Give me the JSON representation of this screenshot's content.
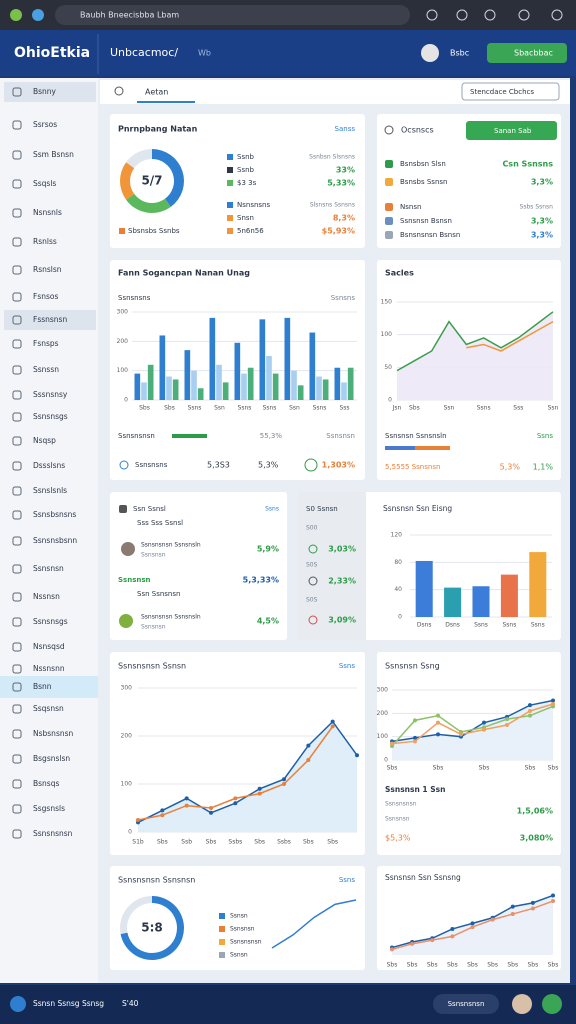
{
  "browser": {
    "url": "Baubh Bneecisbba Lbam"
  },
  "header": {
    "logo": "OhioEtkia",
    "title": "Unbcacmoc/",
    "subtitle": "Wb",
    "user": "Bsbc",
    "button": "Sbacbbac"
  },
  "sidebar": [
    "Bsnny",
    "Ssrsos",
    "Ssm Bsnsn",
    "Ssqsls",
    "Nsnsnls",
    "Rsnlss",
    "Rsnslsn",
    "Fsnsos",
    "Fssnsnsn",
    "Fsnsps",
    "Ssnssn",
    "Sssnsnsy",
    "Ssnsnsgs",
    "Nsqsp",
    "Dssslsns",
    "Ssnslsnls",
    "Ssnsbsnsns",
    "Ssnsnsbsnn",
    "Ssnsnsn",
    "Nssnsn",
    "Ssnsnsgs",
    "Nsnsqsd",
    "Nssnsnn",
    "Bsnn",
    "Ssqsnsn",
    "Nsbsnsnsn",
    "Bsgsnslsn",
    "Bsnsqs",
    "Ssgsnsls",
    "Ssnsnsnsn"
  ],
  "toolbar": {
    "tab": "Aetan",
    "select": "Stencdace Cbchcs"
  },
  "summary": {
    "title": "Pnrnpbang Natan",
    "link": "Sanss",
    "rows": [
      [
        "Ssnb",
        "Ssnbsn Slsnsns"
      ],
      [
        "Ssnb",
        "33%"
      ],
      [
        "$3 3s",
        "5,33%"
      ],
      [
        "Nsnsnsns",
        "Slsnsns Ssnsns"
      ],
      [
        "Snsn",
        "8,3%"
      ],
      [
        "5n6n56",
        "$5,93%"
      ]
    ],
    "footer": "Sbsnsbs Ssnbs"
  },
  "orders": {
    "title": "Ocsnscs",
    "button": "Sanan Sab",
    "rows": [
      [
        "Bsnsbsn Slsn",
        "Csn Ssnsns"
      ],
      [
        "Bsnsbs Ssnsn",
        "3,3%"
      ],
      [
        "Nsnsn",
        "Ssbs Ssnsn"
      ],
      [
        "Ssnsnsn Bsnsn",
        "3,3%"
      ],
      [
        "Bsnsnsnsn Bsnsn",
        "3,3%"
      ]
    ]
  },
  "usage": {
    "title": "Fann Sogancpan Nanan Unag",
    "left": "Ssnsnsns",
    "right": "Ssnsns",
    "progress": [
      "Ssnsnsnsn",
      "55,3%",
      "Ssnsnsn"
    ],
    "stats": [
      "Ssnsnsns",
      "5,3S3",
      "5,3%",
      "1,303%"
    ]
  },
  "sales": {
    "title": "Sacles",
    "note": [
      "Ssnsnsn Ssnsnsln",
      "Ssns"
    ],
    "stats": [
      "5,5555 Ssnsnsn",
      "5,3%",
      "1,1%"
    ]
  },
  "team": {
    "title": "Ssn Ssnsl",
    "link": "Ssns",
    "sub": "Sss Sss Ssnsl",
    "person1": [
      "Ssnsnsnsn Ssnsnsln",
      "Ssnsnsn",
      "5,9%"
    ],
    "total": [
      "Ssnsnsn",
      "5,3,33%"
    ],
    "sub2": "Ssn Ssnsnsn",
    "person2": [
      "Ssnsnsnsn Ssnsnsln",
      "Ssnsnsn",
      "4,5%"
    ]
  },
  "mini": {
    "title": "S0 Ssnsn",
    "rows": [
      [
        "S00",
        "3,03%"
      ],
      [
        "S0S",
        "2,33%"
      ],
      [
        "S0S",
        "3,09%"
      ]
    ]
  },
  "bars": {
    "title": "Ssnsnsn Ssn Eisng"
  },
  "trend": {
    "title": "Ssnsnsnsn Ssnsn",
    "link": "Ssns"
  },
  "growth": {
    "title": "Ssnsnsn Ssng",
    "stats_title": "Ssnsnsn 1 Ssn",
    "rows": [
      "Ssnsnsnsn",
      "1,5,06%",
      "Ssnsnsn",
      "$5,3%",
      "3,080%"
    ]
  },
  "split": {
    "title": "Ssnsnsnsn Ssnsnsn",
    "link": "Ssns",
    "legend": [
      "Ssnsn",
      "Ssnsnsn",
      "Ssnsnsnsn",
      "Ssnsn"
    ]
  },
  "recent": {
    "title": "Ssnsnsn Ssn Ssnsng"
  },
  "footer": {
    "status": "Ssnsn Ssnsg Ssnsg",
    "time": "S'40",
    "button": "Ssnsnsnsn"
  },
  "chart_data": [
    {
      "type": "pie",
      "center_label": "5/7",
      "values": [
        40,
        25,
        20,
        15
      ],
      "colors": [
        "#2f7fd0",
        "#5cb85c",
        "#f0953a",
        "#dfe6ee"
      ]
    },
    {
      "type": "bar",
      "categories": [
        "Sbs",
        "Sbs",
        "Ssns",
        "Ssn",
        "Ssns",
        "Ssns",
        "Ssn",
        "Ssns",
        "Sss"
      ],
      "ylim": [
        0,
        300
      ],
      "yticks": [
        0,
        100,
        200,
        300
      ],
      "series": [
        {
          "color": "#2f7fd0",
          "values": [
            90,
            220,
            170,
            280,
            195,
            275,
            280,
            230,
            110
          ]
        },
        {
          "color": "#a9cff0",
          "values": [
            60,
            80,
            100,
            120,
            90,
            150,
            100,
            80,
            60
          ]
        },
        {
          "color": "#4caf7a",
          "values": [
            120,
            70,
            40,
            60,
            110,
            90,
            50,
            70,
            110
          ]
        }
      ]
    },
    {
      "type": "line",
      "categories": [
        "Jsn",
        "Sbs",
        null,
        "Ssn",
        null,
        "Ssns",
        null,
        "Sss",
        null,
        "Ssn"
      ],
      "ylim": [
        0,
        150
      ],
      "yticks": [
        0,
        50,
        100,
        150
      ],
      "series": [
        {
          "color": "#3a9d4a",
          "fill": "#ece8f6",
          "values": [
            45,
            60,
            75,
            120,
            85,
            95,
            80,
            95,
            115,
            135
          ]
        },
        {
          "color": "#f0953a",
          "values": [
            null,
            null,
            null,
            null,
            80,
            85,
            75,
            90,
            105,
            120
          ]
        }
      ]
    },
    {
      "type": "bar",
      "categories": [
        "Dsns",
        "Dsns",
        "Ssns",
        "Ssns",
        "Ssns"
      ],
      "ylim": [
        0,
        120
      ],
      "yticks": [
        0,
        40,
        80,
        120
      ],
      "values": [
        82,
        43,
        45,
        62,
        95
      ],
      "colors": [
        "#3b7dd8",
        "#2a9fb0",
        "#3b7dd8",
        "#e8734a",
        "#f2a93b"
      ]
    },
    {
      "type": "line",
      "categories": [
        "S1b",
        "Sbs",
        "Ssb",
        "Sbs",
        "Ssbs",
        "Sbs",
        "Ssbs",
        "Sbs",
        "Sbs",
        null
      ],
      "ylim": [
        0,
        300
      ],
      "yticks": [
        0,
        100,
        200,
        300
      ],
      "markers": true,
      "series": [
        {
          "color": "#1f5fa8",
          "fill": "#dcecf8",
          "values": [
            20,
            45,
            70,
            40,
            60,
            90,
            110,
            180,
            230,
            160
          ]
        },
        {
          "color": "#e8803a",
          "values": [
            25,
            35,
            55,
            50,
            70,
            80,
            100,
            150,
            220,
            null
          ]
        }
      ]
    },
    {
      "type": "line",
      "categories": [
        "Sbs",
        null,
        "Sbs",
        null,
        "Sbs",
        null,
        "Sbs",
        "Sbs"
      ],
      "ylim": [
        0,
        300
      ],
      "yticks": [
        0,
        100,
        200,
        300
      ],
      "markers": true,
      "series": [
        {
          "color": "#1f5fa8",
          "fill": "#e6f0fa",
          "values": [
            80,
            95,
            110,
            100,
            160,
            185,
            235,
            255
          ]
        },
        {
          "color": "#8cc06a",
          "values": [
            60,
            170,
            190,
            120,
            140,
            175,
            190,
            230
          ]
        },
        {
          "color": "#f0a060",
          "values": [
            70,
            80,
            160,
            110,
            130,
            150,
            210,
            240
          ]
        }
      ]
    },
    {
      "type": "pie",
      "center_label": "5:8",
      "values": [
        72,
        28
      ],
      "colors": [
        "#2f7fd0",
        "#dfe6ee"
      ]
    },
    {
      "type": "line",
      "categories": [
        null,
        null,
        null,
        null,
        null
      ],
      "series": [
        {
          "color": "#2f7fd0",
          "values": [
            20,
            35,
            55,
            70,
            75
          ]
        }
      ]
    },
    {
      "type": "line",
      "categories": [
        "Sbs",
        "Sbs",
        "Sbs",
        "Sbs",
        "Sbs",
        "Sbs",
        "Sbs",
        "Sbs",
        "Sbs"
      ],
      "ylim": [
        0,
        180
      ],
      "markers": true,
      "series": [
        {
          "color": "#1f5fa8",
          "fill": "#eaf0f8",
          "values": [
            20,
            35,
            45,
            70,
            85,
            100,
            130,
            140,
            160
          ]
        },
        {
          "color": "#e8906a",
          "values": [
            15,
            30,
            40,
            50,
            75,
            95,
            110,
            125,
            145
          ]
        }
      ]
    }
  ]
}
